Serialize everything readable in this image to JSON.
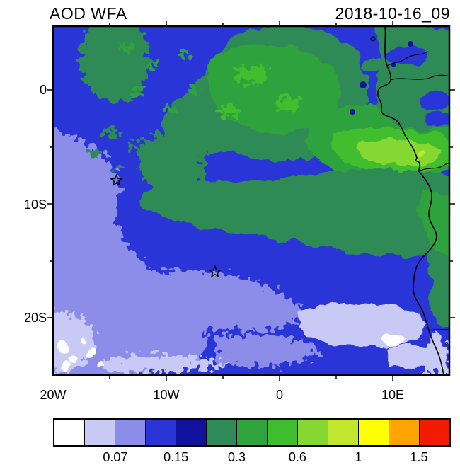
{
  "header": {
    "title": "AOD WFA",
    "date": "2018-10-16_09"
  },
  "chart_data": {
    "type": "heatmap",
    "subtype": "filled-contour-map",
    "title": "AOD WFA",
    "timestamp": "2018-10-16_09",
    "variable": "AOD",
    "extent": {
      "lon_min": -20,
      "lon_max": 15,
      "lat_min": -25,
      "lat_max": 5.6
    },
    "x_tick_labels": [
      "20W",
      "10W",
      "0",
      "10E"
    ],
    "x_tick_lons": [
      -20,
      -10,
      0,
      10
    ],
    "y_tick_labels": [
      "0",
      "10S",
      "20S"
    ],
    "y_tick_lats": [
      0,
      -10,
      -20
    ],
    "grid": false,
    "contour_levels": [
      0.05,
      0.07,
      0.1,
      0.15,
      0.2,
      0.3,
      0.4,
      0.6,
      0.8,
      1,
      1.2,
      1.5
    ],
    "palette": [
      "#ffffff",
      "#c9c9f5",
      "#8b8de9",
      "#2a35d8",
      "#10129d",
      "#2e8b57",
      "#2fa33c",
      "#3fbe2d",
      "#85d832",
      "#c2e62e",
      "#ffff00",
      "#ffa400",
      "#f21b00"
    ],
    "colorbar_labels": [
      "0.07",
      "0.15",
      "0.3",
      "0.6",
      "1",
      "1.5"
    ],
    "colorbar_label_level_indices": [
      1,
      3,
      5,
      7,
      9,
      11
    ],
    "legend_position": "bottom",
    "markers": [
      {
        "symbol": "star",
        "lon": -14.4,
        "lat": -7.95
      },
      {
        "symbol": "star",
        "lon": -5.7,
        "lat": -15.95
      }
    ],
    "field_summary": [
      {
        "region": "eastern tropical band near African coast, 2S-9S",
        "aod_range": "0.4-0.8 (bright greens)"
      },
      {
        "region": "broad central band 4S-12S extending west",
        "aod_range": "0.2-0.4 (dark sea green)"
      },
      {
        "region": "open South Atlantic southwest",
        "aod_range": "0.07-0.15 (blue / periwinkle speckle)"
      },
      {
        "region": "far southwest corner and southeast near Namibian coast",
        "aod_range": "< 0.07 (lavender / white patches)"
      }
    ]
  }
}
